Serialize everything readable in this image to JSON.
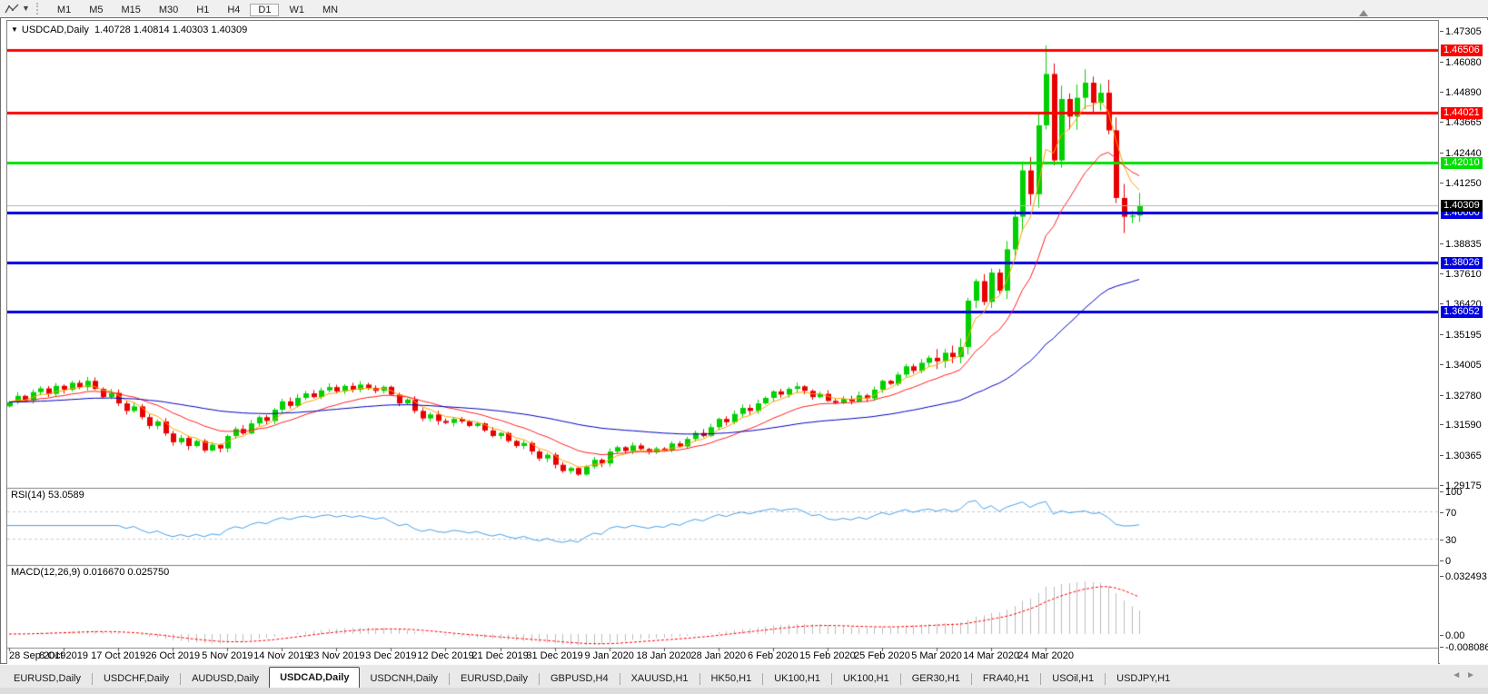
{
  "toolbar": {
    "timeframes": [
      "M1",
      "M5",
      "M15",
      "M30",
      "H1",
      "H4",
      "D1",
      "W1",
      "MN"
    ],
    "active_timeframe": "D1"
  },
  "chart": {
    "dropdown_glyph": "▼",
    "symbol_period": "USDCAD,Daily",
    "ohlc_text": "1.40728 1.40814 1.40303 1.40309",
    "price_axis_ticks": [
      "1.47305",
      "1.46080",
      "1.44890",
      "1.43665",
      "1.42440",
      "1.41250",
      "1.38835",
      "1.37610",
      "1.36420",
      "1.35195",
      "1.34005",
      "1.32780",
      "1.31590",
      "1.30365",
      "1.29175"
    ],
    "hlines": [
      {
        "price": 1.46506,
        "label": "1.46506",
        "color": "#ff0000"
      },
      {
        "price": 1.44021,
        "label": "1.44021",
        "color": "#ff0000"
      },
      {
        "price": 1.4201,
        "label": "1.42010",
        "color": "#00e000"
      },
      {
        "price": 1.4,
        "label": "1.40000",
        "color": "#0000e0"
      },
      {
        "price": 1.38026,
        "label": "1.38026",
        "color": "#0000e0"
      },
      {
        "price": 1.36052,
        "label": "1.36052",
        "color": "#0000e0"
      }
    ],
    "current_price": {
      "label": "1.40309",
      "value": 1.40309
    },
    "date_ticks": [
      "28 Sep 2019",
      "8 Oct 2019",
      "17 Oct 2019",
      "26 Oct 2019",
      "5 Nov 2019",
      "14 Nov 2019",
      "23 Nov 2019",
      "3 Dec 2019",
      "12 Dec 2019",
      "21 Dec 2019",
      "31 Dec 2019",
      "9 Jan 2020",
      "18 Jan 2020",
      "28 Jan 2020",
      "6 Feb 2020",
      "15 Feb 2020",
      "25 Feb 2020",
      "5 Mar 2020",
      "14 Mar 2020",
      "24 Mar 2020"
    ]
  },
  "chart_data": {
    "type": "candlestick",
    "symbol": "USDCAD",
    "timeframe": "Daily",
    "price_range": [
      1.29175,
      1.47305
    ],
    "bars_per_date_tick": 7,
    "open_first": 1.3228,
    "closes": [
      1.3245,
      1.327,
      1.3252,
      1.3285,
      1.33,
      1.3278,
      1.331,
      1.3295,
      1.3322,
      1.3305,
      1.333,
      1.3298,
      1.3265,
      1.3282,
      1.324,
      1.321,
      1.3228,
      1.3185,
      1.315,
      1.3168,
      1.312,
      1.3085,
      1.3102,
      1.307,
      1.309,
      1.3052,
      1.3075,
      1.306,
      1.311,
      1.3138,
      1.312,
      1.316,
      1.3185,
      1.317,
      1.3215,
      1.3248,
      1.323,
      1.3262,
      1.328,
      1.3265,
      1.3292,
      1.3305,
      1.3288,
      1.331,
      1.3295,
      1.3315,
      1.3302,
      1.329,
      1.3306,
      1.3275,
      1.324,
      1.3255,
      1.321,
      1.318,
      1.3196,
      1.317,
      1.3162,
      1.3178,
      1.3168,
      1.315,
      1.316,
      1.3132,
      1.311,
      1.3122,
      1.309,
      1.307,
      1.3082,
      1.3048,
      1.302,
      1.3035,
      1.2995,
      1.297,
      1.2982,
      1.2956,
      1.2988,
      1.3015,
      1.3,
      1.3048,
      1.3065,
      1.305,
      1.3072,
      1.3058,
      1.3045,
      1.306,
      1.3052,
      1.308,
      1.3068,
      1.3098,
      1.3122,
      1.311,
      1.3145,
      1.3178,
      1.3165,
      1.3198,
      1.3222,
      1.321,
      1.324,
      1.3262,
      1.3288,
      1.3275,
      1.3298,
      1.3308,
      1.329,
      1.3265,
      1.3278,
      1.325,
      1.3242,
      1.3258,
      1.3248,
      1.3272,
      1.326,
      1.3295,
      1.333,
      1.3318,
      1.3355,
      1.3388,
      1.337,
      1.3402,
      1.3422,
      1.3408,
      1.3442,
      1.3425,
      1.3465,
      1.365,
      1.3728,
      1.3645,
      1.3762,
      1.369,
      1.3855,
      1.3985,
      1.417,
      1.4075,
      1.435,
      1.4555,
      1.421,
      1.4455,
      1.4385,
      1.446,
      1.452,
      1.444,
      1.448,
      1.433,
      1.406,
      1.3985,
      1.399,
      1.4031
    ],
    "wick_overrides": {
      "133": {
        "h": 1.4669
      },
      "143": {
        "l": 1.392
      }
    },
    "moving_averages": [
      {
        "period": 5,
        "method": "ema",
        "color": "#ffa200"
      },
      {
        "period": 15,
        "method": "ema",
        "color": "#ff2020"
      },
      {
        "period": 60,
        "method": "ema",
        "color": "#0000c0"
      }
    ]
  },
  "rsi": {
    "label": "RSI(14) 53.0589",
    "period": 14,
    "current": 53.0589,
    "axis_ticks": [
      {
        "label": "100",
        "value": 100
      },
      {
        "label": "70",
        "value": 70
      },
      {
        "label": "30",
        "value": 30
      },
      {
        "label": "0",
        "value": 0
      }
    ],
    "levels": [
      70,
      30
    ],
    "line_color": "#49a1e8"
  },
  "macd": {
    "label": "MACD(12,26,9) 0.016670 0.025750",
    "fast": 12,
    "slow": 26,
    "signal": 9,
    "main_value": 0.01667,
    "signal_value": 0.02575,
    "axis_ticks": [
      {
        "label": "0.032493",
        "value": 0.032493
      },
      {
        "label": "0.00",
        "value": 0
      },
      {
        "label": "-0.008086",
        "value": -0.008086
      }
    ],
    "hist_color": "#bdbdbd",
    "signal_color": "#ff0000"
  },
  "tabs": {
    "items": [
      "EURUSD,Daily",
      "USDCHF,Daily",
      "AUDUSD,Daily",
      "USDCAD,Daily",
      "USDCNH,Daily",
      "EURUSD,Daily",
      "GBPUSD,H4",
      "XAUUSD,H1",
      "HK50,H1",
      "UK100,H1",
      "UK100,H1",
      "GER30,H1",
      "FRA40,H1",
      "USOil,H1",
      "USDJPY,H1"
    ],
    "active_index": 3,
    "left_arrow": "◄",
    "right_arrow": "►"
  },
  "colors": {
    "up": "#00d000",
    "down": "#e80000",
    "frame": "#808080",
    "panel_bg": "#ffffff",
    "price_line": "#b4b4b4",
    "current_badge_bg": "#000000",
    "level_dash": "#c8c8c8",
    "axis_text": "#000000"
  }
}
